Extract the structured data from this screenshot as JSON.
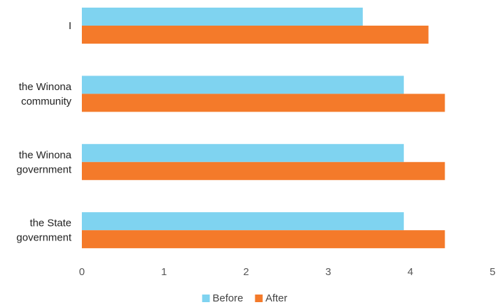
{
  "chart_data": {
    "type": "bar",
    "orientation": "horizontal",
    "categories": [
      [
        "I"
      ],
      [
        "the Winona",
        "community"
      ],
      [
        "the Winona",
        "government"
      ],
      [
        "the State",
        "government"
      ]
    ],
    "series": [
      {
        "name": "Before",
        "color": "#7fd3f0",
        "values": [
          3.42,
          3.92,
          3.92,
          3.92
        ]
      },
      {
        "name": "After",
        "color": "#f47a2a",
        "values": [
          4.22,
          4.42,
          4.42,
          4.42
        ]
      }
    ],
    "x_ticks": [
      "0",
      "1",
      "2",
      "3",
      "4",
      "5"
    ],
    "xlim": [
      0,
      5
    ],
    "title": "",
    "xlabel": "",
    "ylabel": "",
    "grid": false,
    "legend_position": "bottom"
  }
}
